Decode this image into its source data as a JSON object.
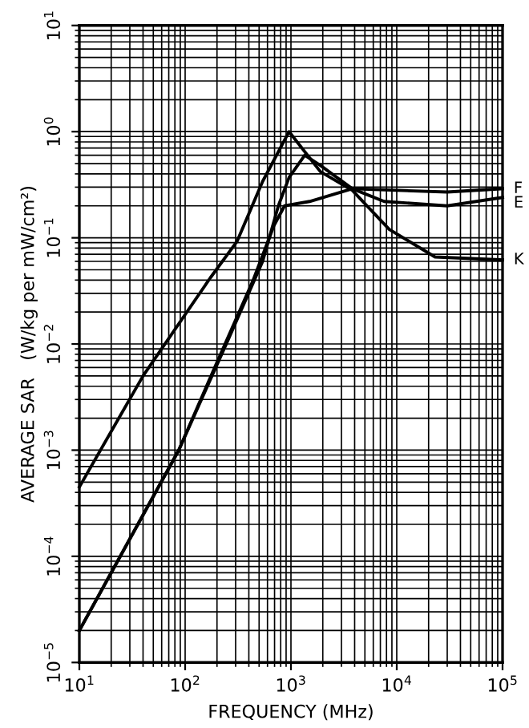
{
  "chart_data": {
    "type": "line",
    "xlabel": "FREQUENCY (MHz)",
    "ylabel": "AVERAGE SAR   (W/kg per mW/cm²)",
    "log": "xy",
    "grid": true,
    "legend": false,
    "xlim": [
      10,
      100000
    ],
    "ylim": [
      1e-05,
      10
    ],
    "xticks": [
      {
        "value": 10,
        "label": "10$^{1}$"
      },
      {
        "value": 100,
        "label": "10$^{2}$"
      },
      {
        "value": 1000,
        "label": "10$^{3}$"
      },
      {
        "value": 10000,
        "label": "10$^{4}$"
      },
      {
        "value": 100000,
        "label": "10$^{5}$"
      }
    ],
    "yticks": [
      {
        "value": 1e-05,
        "label": "10$^{−5}$"
      },
      {
        "value": 0.0001,
        "label": "10$^{−4}$"
      },
      {
        "value": 0.001,
        "label": "10$^{−3}$"
      },
      {
        "value": 0.01,
        "label": "10$^{−2}$"
      },
      {
        "value": 0.1,
        "label": "10$^{−1}$"
      },
      {
        "value": 1,
        "label": "10$^{0}$"
      },
      {
        "value": 10,
        "label": "10$^{1}$"
      }
    ],
    "series": [
      {
        "name": "F",
        "color": "#000000",
        "x": [
          10,
          87,
          190,
          440,
          690,
          870,
          1500,
          3800,
          10000,
          30000,
          100000
        ],
        "values": [
          2e-05,
          0.001,
          0.006,
          0.04,
          0.13,
          0.2,
          0.22,
          0.29,
          0.28,
          0.27,
          0.29
        ]
      },
      {
        "name": "E",
        "color": "#000000",
        "x": [
          10,
          87,
          245,
          540,
          760,
          960,
          1350,
          1900,
          3800,
          7600,
          30000,
          100000
        ],
        "values": [
          2e-05,
          0.001,
          0.01,
          0.06,
          0.2,
          0.37,
          0.6,
          0.48,
          0.29,
          0.22,
          0.2,
          0.24
        ]
      },
      {
        "name": "K",
        "color": "#000000",
        "x": [
          10,
          40,
          173,
          310,
          540,
          960,
          1900,
          3800,
          8500,
          23000,
          100000
        ],
        "values": [
          0.00045,
          0.005,
          0.042,
          0.093,
          0.34,
          1.0,
          0.42,
          0.28,
          0.12,
          0.066,
          0.062
        ]
      }
    ]
  }
}
